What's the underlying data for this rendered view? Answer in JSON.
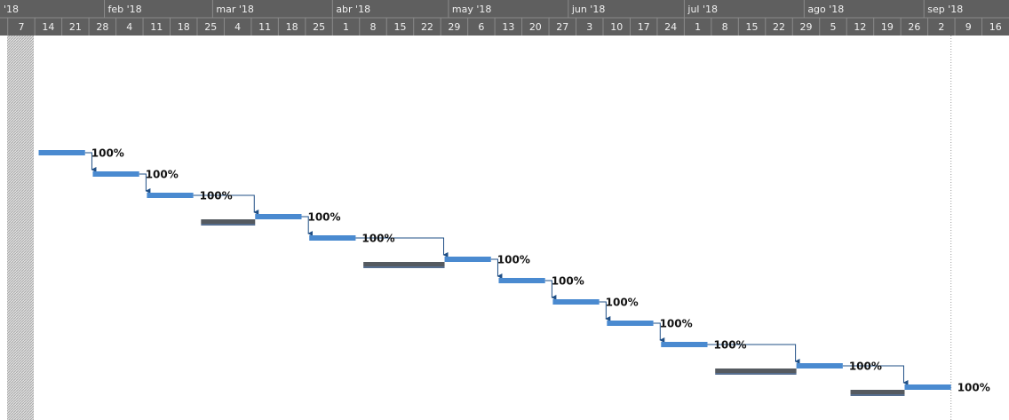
{
  "chart_data": {
    "type": "gantt",
    "xlim": [
      "2018-01-05",
      "2018-09-23"
    ],
    "month_ticks": [
      {
        "value": "2018-01-01",
        "label": "'18"
      },
      {
        "value": "2018-02-01",
        "label": "feb '18"
      },
      {
        "value": "2018-03-01",
        "label": "mar '18"
      },
      {
        "value": "2018-04-01",
        "label": "abr '18"
      },
      {
        "value": "2018-05-01",
        "label": "may '18"
      },
      {
        "value": "2018-06-01",
        "label": "jun '18"
      },
      {
        "value": "2018-07-01",
        "label": "jul '18"
      },
      {
        "value": "2018-08-01",
        "label": "ago '18"
      },
      {
        "value": "2018-09-01",
        "label": "sep '18"
      }
    ],
    "xticks": [
      {
        "value": "2018-01-07",
        "label": "7"
      },
      {
        "value": "2018-01-14",
        "label": "14"
      },
      {
        "value": "2018-01-21",
        "label": "21"
      },
      {
        "value": "2018-01-28",
        "label": "28"
      },
      {
        "value": "2018-02-04",
        "label": "4"
      },
      {
        "value": "2018-02-11",
        "label": "11"
      },
      {
        "value": "2018-02-18",
        "label": "18"
      },
      {
        "value": "2018-02-25",
        "label": "25"
      },
      {
        "value": "2018-03-04",
        "label": "4"
      },
      {
        "value": "2018-03-11",
        "label": "11"
      },
      {
        "value": "2018-03-18",
        "label": "18"
      },
      {
        "value": "2018-03-25",
        "label": "25"
      },
      {
        "value": "2018-04-01",
        "label": "1"
      },
      {
        "value": "2018-04-08",
        "label": "8"
      },
      {
        "value": "2018-04-15",
        "label": "15"
      },
      {
        "value": "2018-04-22",
        "label": "22"
      },
      {
        "value": "2018-04-29",
        "label": "29"
      },
      {
        "value": "2018-05-06",
        "label": "6"
      },
      {
        "value": "2018-05-13",
        "label": "13"
      },
      {
        "value": "2018-05-20",
        "label": "20"
      },
      {
        "value": "2018-05-27",
        "label": "27"
      },
      {
        "value": "2018-06-03",
        "label": "3"
      },
      {
        "value": "2018-06-10",
        "label": "10"
      },
      {
        "value": "2018-06-17",
        "label": "17"
      },
      {
        "value": "2018-06-24",
        "label": "24"
      },
      {
        "value": "2018-07-01",
        "label": "1"
      },
      {
        "value": "2018-07-08",
        "label": "8"
      },
      {
        "value": "2018-07-15",
        "label": "15"
      },
      {
        "value": "2018-07-22",
        "label": "22"
      },
      {
        "value": "2018-07-29",
        "label": "29"
      },
      {
        "value": "2018-08-05",
        "label": "5"
      },
      {
        "value": "2018-08-12",
        "label": "12"
      },
      {
        "value": "2018-08-19",
        "label": "19"
      },
      {
        "value": "2018-08-26",
        "label": "26"
      },
      {
        "value": "2018-09-02",
        "label": "2"
      },
      {
        "value": "2018-09-09",
        "label": "9"
      },
      {
        "value": "2018-09-16",
        "label": "16"
      }
    ],
    "status_date": "2018-09-08",
    "color": "#4a8ad0",
    "baseline_color": "#555a60",
    "tasks": [
      {
        "start": "2018-01-15",
        "finish": "2018-01-27",
        "label": "100%"
      },
      {
        "start": "2018-01-29",
        "finish": "2018-02-10",
        "label": "100%"
      },
      {
        "start": "2018-02-12",
        "finish": "2018-02-24",
        "label": "100%"
      },
      {
        "start": "2018-03-12",
        "finish": "2018-03-24",
        "label": "100%",
        "baseline_start": "2018-02-26",
        "baseline_finish": "2018-03-12"
      },
      {
        "start": "2018-03-26",
        "finish": "2018-04-07",
        "label": "100%"
      },
      {
        "start": "2018-04-30",
        "finish": "2018-05-12",
        "label": "100%",
        "baseline_start": "2018-04-09",
        "baseline_finish": "2018-04-30"
      },
      {
        "start": "2018-05-14",
        "finish": "2018-05-26",
        "label": "100%"
      },
      {
        "start": "2018-05-28",
        "finish": "2018-06-09",
        "label": "100%"
      },
      {
        "start": "2018-06-11",
        "finish": "2018-06-23",
        "label": "100%"
      },
      {
        "start": "2018-06-25",
        "finish": "2018-07-07",
        "label": "100%"
      },
      {
        "start": "2018-07-30",
        "finish": "2018-08-11",
        "label": "100%",
        "baseline_start": "2018-07-09",
        "baseline_finish": "2018-07-30"
      },
      {
        "start": "2018-08-27",
        "finish": "2018-09-08",
        "label": "100%",
        "baseline_start": "2018-08-13",
        "baseline_finish": "2018-08-27"
      }
    ]
  }
}
